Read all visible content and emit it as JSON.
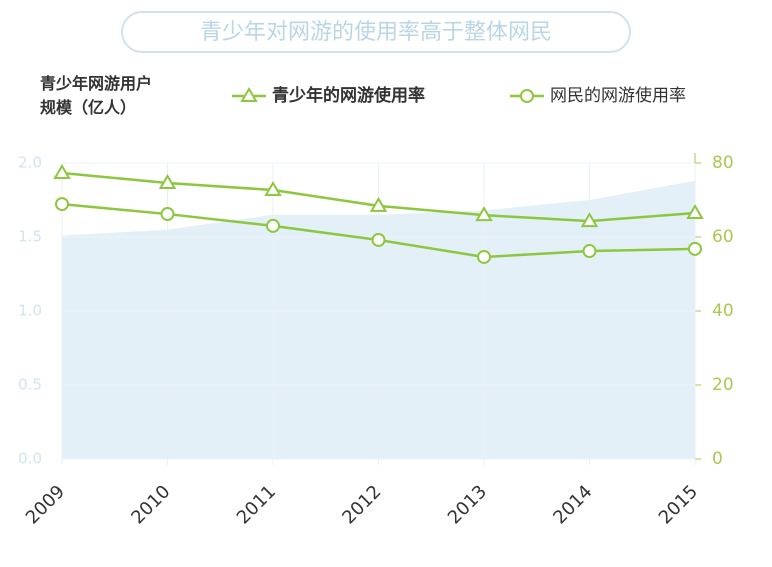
{
  "chart_data": {
    "type": "line",
    "title": "青少年对网游的使用率高于整体网民",
    "y_label": "青少年网游用户规模（亿人）",
    "categories": [
      "2009",
      "2010",
      "2011",
      "2012",
      "2013",
      "2014",
      "2015"
    ],
    "area": {
      "color": "#e3f0f8",
      "values": [
        1.51,
        1.55,
        1.65,
        1.65,
        1.68,
        1.75,
        1.88
      ]
    },
    "series": [
      {
        "name": "青少年的网游使用率",
        "color": "#8dc63f",
        "marker": "triangle",
        "axis": "y2",
        "values": [
          77.3,
          74.6,
          72.7,
          68.4,
          65.9,
          64.3,
          66.5
        ]
      },
      {
        "name": "网民的网游使用率",
        "color": "#8dc63f",
        "marker": "circle",
        "axis": "y2",
        "values": [
          68.9,
          66.2,
          63.0,
          59.2,
          54.6,
          56.2,
          56.8
        ]
      }
    ],
    "ylim": [
      0,
      2
    ],
    "yticks": [
      {
        "value": 0,
        "label": "0.0"
      },
      0.5,
      {
        "value": 1,
        "label": "1.0"
      },
      1.5,
      {
        "value": 2,
        "label": "2.0"
      }
    ],
    "y2lim": [
      0,
      80
    ],
    "y2ticks": [
      0,
      20,
      40,
      60,
      80
    ],
    "grid": true
  }
}
